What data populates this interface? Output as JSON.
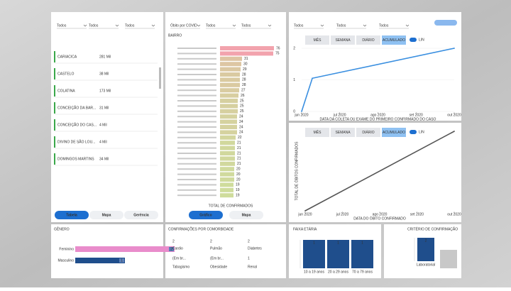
{
  "filters": {
    "left": [
      "Todos",
      "Todos",
      "Todos"
    ],
    "middle": [
      "Óbito por COVID",
      "Todos",
      "Todos"
    ],
    "right": [
      "Todos",
      "Todos",
      "Todos"
    ]
  },
  "municipios": {
    "rows": [
      {
        "name": "CARIACICA",
        "value": "281 Mil"
      },
      {
        "name": "CASTELO",
        "value": "38 Mil"
      },
      {
        "name": "COLATINA",
        "value": "173 Mil"
      },
      {
        "name": "CONCEIÇÃO DA BAR...",
        "value": "31 Mil"
      },
      {
        "name": "CONCEIÇÃO DO CAS...",
        "value": "4 Mil"
      },
      {
        "name": "DIVINO DE SÃO LOU...",
        "value": "4 Mil"
      },
      {
        "name": "DOMINGOS MARTINS",
        "value": "34 Mil"
      }
    ]
  },
  "left_buttons": [
    "Tabela",
    "Mapa",
    "Gerência"
  ],
  "bairro": {
    "title": "BAIRRO",
    "values": [
      76,
      75,
      31,
      30,
      29,
      28,
      28,
      28,
      27,
      26,
      25,
      25,
      25,
      24,
      24,
      24,
      24,
      22,
      21,
      21,
      21,
      21,
      21,
      20,
      20,
      20,
      19,
      19,
      19
    ],
    "x_label": "TOTAL DE CONFIRMADOS",
    "high_color": "#f2a3ad",
    "low_color": "#cfdc9c"
  },
  "middle_buttons": [
    "Gráfico",
    "Mapa"
  ],
  "genero": {
    "title": "GÊNERO",
    "categories": [
      "Feminino",
      "Masculino"
    ],
    "values": [
      2,
      1
    ],
    "colors": [
      "#e98ccb",
      "#1f4e8c"
    ]
  },
  "comorbidades": {
    "title": "CONFIRMAÇÕES POR COMORBIDADE",
    "items": [
      {
        "value": 2,
        "name": "Cardio",
        "sub": "(Em br...",
        "sub2": "Tabagismo"
      },
      {
        "value": 2,
        "name": "Pulmão",
        "sub": "(Em br...",
        "sub2": "Obesidade"
      },
      {
        "value": 2,
        "name": "Diabetes",
        "sub": "1",
        "sub2": "Renal"
      }
    ]
  },
  "casos": {
    "tabs": [
      "MÊS",
      "SEMANA",
      "DIÁRIO",
      "ACUMULADO"
    ],
    "toggle": "LIN",
    "x": [
      0,
      7,
      100
    ],
    "values": [
      0,
      1.05,
      2
    ],
    "xlim": [
      0,
      100
    ],
    "ylim": [
      0,
      2
    ],
    "yticks": [
      0,
      1,
      2
    ],
    "xticks": [
      {
        "value": 0,
        "label": "jun 2020"
      },
      {
        "value": 25,
        "label": "jul 2020"
      },
      {
        "value": 50,
        "label": "ago 2020"
      },
      {
        "value": 75,
        "label": "set 2020"
      },
      {
        "value": 100,
        "label": "out 2020"
      }
    ],
    "x_label": "DATA DA COLETA OU EXAME DO PRIMEIRO CONFIRMADO DO CASO",
    "color": "#3a8fe0"
  },
  "obitos": {
    "tabs": [
      "MÊS",
      "SEMANA",
      "DIÁRIO",
      "ACUMULADO"
    ],
    "toggle": "LIN",
    "x": [
      0,
      100
    ],
    "values": [
      0,
      1
    ],
    "xlim": [
      0,
      100
    ],
    "ylim": [
      0,
      1
    ],
    "xticks": [
      {
        "value": 0,
        "label": "jun 2020"
      },
      {
        "value": 25,
        "label": "jul 2020"
      },
      {
        "value": 50,
        "label": "ago 2020"
      },
      {
        "value": 75,
        "label": "set 2020"
      },
      {
        "value": 100,
        "label": "out 2020"
      }
    ],
    "x_label": "DATA DO ÓBITO CONFIRMADO",
    "y_label": "TOTAL DE ÓBITOS CONFIRMADOS",
    "color": "#555555"
  },
  "faixa": {
    "title": "FAIXA ETÁRIA",
    "categories": [
      "10 a 19 anos",
      "20 a 29 anos",
      "70 a 79 anos"
    ],
    "values": [
      1,
      1,
      1
    ],
    "ylim": [
      0,
      1
    ],
    "color": "#1f4e8c"
  },
  "criterio": {
    "title": "CRITÉRIO DE CONFIRMAÇÃO",
    "categories": [
      "Laboratorial"
    ],
    "values": [
      2
    ],
    "ylim": [
      0,
      2
    ],
    "color": "#1f4e8c"
  }
}
